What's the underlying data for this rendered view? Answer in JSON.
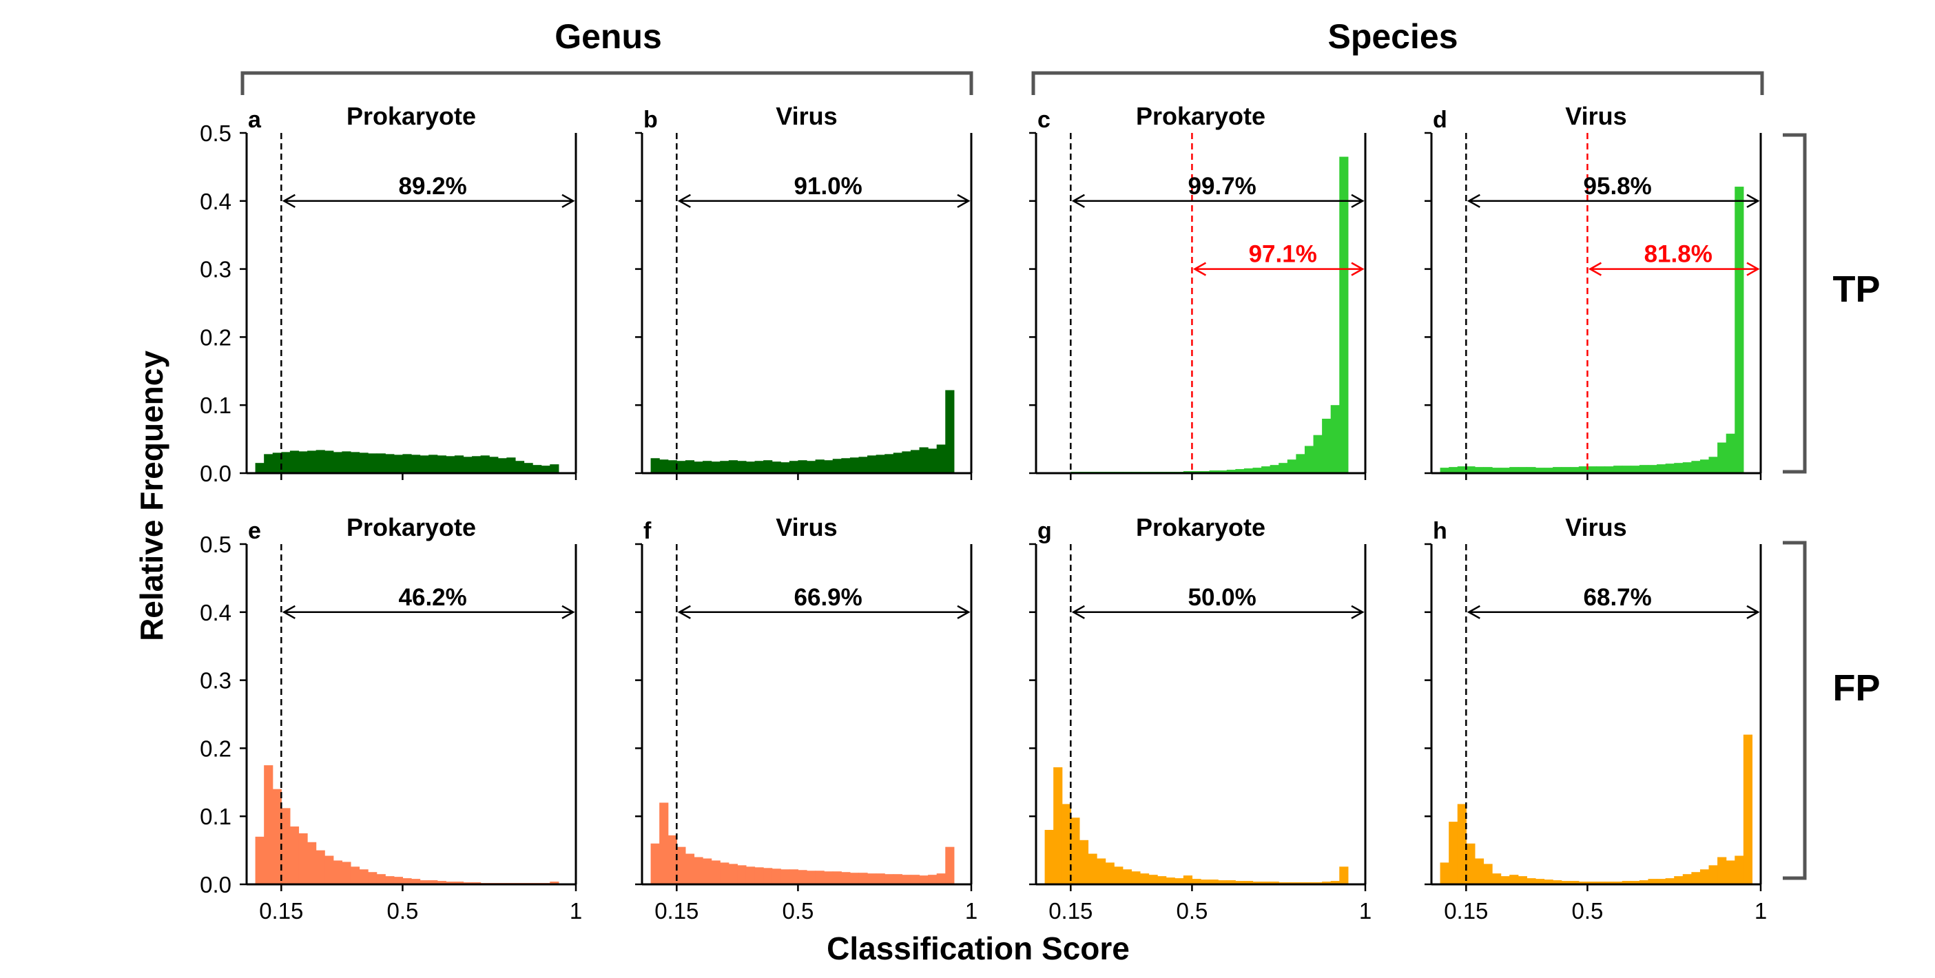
{
  "figure": {
    "y_label": "Relative Frequency",
    "x_label": "Classification Score",
    "column_groups": [
      "Genus",
      "Species"
    ],
    "row_labels": [
      "TP",
      "FP"
    ],
    "y_ticks": [
      "0.0",
      "0.1",
      "0.2",
      "0.3",
      "0.4",
      "0.5"
    ],
    "x_ticks": [
      "0.15",
      "0.5",
      "1"
    ]
  },
  "colors": {
    "genus_tp": "#006400",
    "species_tp": "#32cd32",
    "genus_fp": "#ff7f50",
    "species_fp": "#ffa500",
    "threshold_red": "#ff0000",
    "axis": "#000000"
  },
  "chart_data": [
    {
      "type": "bar",
      "panel": "a",
      "group": "Genus",
      "row": "TP",
      "title": "Prokaryote",
      "xlim": [
        0.05,
        1.0
      ],
      "ylim": [
        0,
        0.5
      ],
      "bin_start": 0.075,
      "bin_width": 0.025,
      "values": [
        0.015,
        0.028,
        0.03,
        0.031,
        0.033,
        0.032,
        0.033,
        0.034,
        0.033,
        0.031,
        0.032,
        0.031,
        0.03,
        0.029,
        0.029,
        0.028,
        0.027,
        0.028,
        0.027,
        0.026,
        0.027,
        0.026,
        0.025,
        0.026,
        0.024,
        0.025,
        0.026,
        0.024,
        0.022,
        0.023,
        0.018,
        0.015,
        0.012,
        0.011,
        0.013
      ],
      "annotations": [
        {
          "text": "89.2%",
          "from": 0.15,
          "to": 1.0,
          "y": 0.4,
          "color": "#000000"
        }
      ],
      "thresholds": [
        {
          "x": 0.15,
          "color": "#000000"
        }
      ]
    },
    {
      "type": "bar",
      "panel": "b",
      "group": "Genus",
      "row": "TP",
      "title": "Virus",
      "xlim": [
        0.05,
        1.0
      ],
      "ylim": [
        0,
        0.5
      ],
      "bin_start": 0.075,
      "bin_width": 0.025,
      "values": [
        0.022,
        0.02,
        0.019,
        0.018,
        0.019,
        0.017,
        0.018,
        0.017,
        0.018,
        0.019,
        0.018,
        0.017,
        0.018,
        0.019,
        0.017,
        0.016,
        0.018,
        0.019,
        0.018,
        0.02,
        0.019,
        0.021,
        0.022,
        0.023,
        0.024,
        0.026,
        0.027,
        0.028,
        0.03,
        0.032,
        0.034,
        0.038,
        0.036,
        0.042,
        0.122
      ],
      "annotations": [
        {
          "text": "91.0%",
          "from": 0.15,
          "to": 1.0,
          "y": 0.4,
          "color": "#000000"
        }
      ],
      "thresholds": [
        {
          "x": 0.15,
          "color": "#000000"
        }
      ]
    },
    {
      "type": "bar",
      "panel": "c",
      "group": "Species",
      "row": "TP",
      "title": "Prokaryote",
      "xlim": [
        0.05,
        1.0
      ],
      "ylim": [
        0,
        0.5
      ],
      "bin_start": 0.075,
      "bin_width": 0.025,
      "values": [
        0.001,
        0.001,
        0.001,
        0.002,
        0.002,
        0.002,
        0.002,
        0.002,
        0.002,
        0.002,
        0.002,
        0.002,
        0.002,
        0.002,
        0.002,
        0.002,
        0.003,
        0.003,
        0.003,
        0.004,
        0.004,
        0.005,
        0.006,
        0.007,
        0.008,
        0.01,
        0.012,
        0.015,
        0.02,
        0.028,
        0.04,
        0.056,
        0.08,
        0.1,
        0.465
      ],
      "annotations": [
        {
          "text": "99.7%",
          "from": 0.15,
          "to": 1.0,
          "y": 0.4,
          "color": "#000000"
        },
        {
          "text": "97.1%",
          "from": 0.5,
          "to": 1.0,
          "y": 0.3,
          "color": "#ff0000"
        }
      ],
      "thresholds": [
        {
          "x": 0.15,
          "color": "#000000"
        },
        {
          "x": 0.5,
          "color": "#ff0000"
        }
      ]
    },
    {
      "type": "bar",
      "panel": "d",
      "group": "Species",
      "row": "TP",
      "title": "Virus",
      "xlim": [
        0.05,
        1.0
      ],
      "ylim": [
        0,
        0.5
      ],
      "bin_start": 0.075,
      "bin_width": 0.025,
      "values": [
        0.008,
        0.009,
        0.01,
        0.01,
        0.009,
        0.009,
        0.008,
        0.008,
        0.009,
        0.009,
        0.009,
        0.008,
        0.008,
        0.009,
        0.009,
        0.009,
        0.01,
        0.01,
        0.01,
        0.01,
        0.011,
        0.011,
        0.011,
        0.012,
        0.012,
        0.013,
        0.014,
        0.015,
        0.016,
        0.018,
        0.02,
        0.024,
        0.045,
        0.058,
        0.421
      ],
      "annotations": [
        {
          "text": "95.8%",
          "from": 0.15,
          "to": 1.0,
          "y": 0.4,
          "color": "#000000"
        },
        {
          "text": "81.8%",
          "from": 0.5,
          "to": 1.0,
          "y": 0.3,
          "color": "#ff0000"
        }
      ],
      "thresholds": [
        {
          "x": 0.15,
          "color": "#000000"
        },
        {
          "x": 0.5,
          "color": "#ff0000"
        }
      ]
    },
    {
      "type": "bar",
      "panel": "e",
      "group": "Genus",
      "row": "FP",
      "title": "Prokaryote",
      "xlim": [
        0.05,
        1.0
      ],
      "ylim": [
        0,
        0.5
      ],
      "bin_start": 0.075,
      "bin_width": 0.025,
      "values": [
        0.07,
        0.175,
        0.14,
        0.112,
        0.085,
        0.075,
        0.062,
        0.05,
        0.042,
        0.035,
        0.033,
        0.026,
        0.022,
        0.018,
        0.015,
        0.012,
        0.011,
        0.009,
        0.008,
        0.006,
        0.006,
        0.005,
        0.004,
        0.004,
        0.003,
        0.003,
        0.002,
        0.002,
        0.002,
        0.002,
        0.002,
        0.002,
        0.002,
        0.002,
        0.004
      ],
      "annotations": [
        {
          "text": "46.2%",
          "from": 0.15,
          "to": 1.0,
          "y": 0.4,
          "color": "#000000"
        }
      ],
      "thresholds": [
        {
          "x": 0.15,
          "color": "#000000"
        }
      ]
    },
    {
      "type": "bar",
      "panel": "f",
      "group": "Genus",
      "row": "FP",
      "title": "Virus",
      "xlim": [
        0.05,
        1.0
      ],
      "ylim": [
        0,
        0.5
      ],
      "bin_start": 0.075,
      "bin_width": 0.025,
      "values": [
        0.06,
        0.12,
        0.072,
        0.055,
        0.045,
        0.04,
        0.038,
        0.035,
        0.032,
        0.03,
        0.028,
        0.026,
        0.025,
        0.024,
        0.023,
        0.022,
        0.022,
        0.021,
        0.02,
        0.02,
        0.019,
        0.019,
        0.018,
        0.017,
        0.017,
        0.016,
        0.016,
        0.015,
        0.015,
        0.014,
        0.014,
        0.013,
        0.014,
        0.016,
        0.055
      ],
      "annotations": [
        {
          "text": "66.9%",
          "from": 0.15,
          "to": 1.0,
          "y": 0.4,
          "color": "#000000"
        }
      ],
      "thresholds": [
        {
          "x": 0.15,
          "color": "#000000"
        }
      ]
    },
    {
      "type": "bar",
      "panel": "g",
      "group": "Species",
      "row": "FP",
      "title": "Prokaryote",
      "xlim": [
        0.05,
        1.0
      ],
      "ylim": [
        0,
        0.5
      ],
      "bin_start": 0.075,
      "bin_width": 0.025,
      "values": [
        0.08,
        0.172,
        0.118,
        0.098,
        0.065,
        0.045,
        0.038,
        0.032,
        0.026,
        0.022,
        0.019,
        0.016,
        0.014,
        0.012,
        0.01,
        0.009,
        0.013,
        0.008,
        0.007,
        0.007,
        0.006,
        0.006,
        0.005,
        0.005,
        0.004,
        0.004,
        0.004,
        0.003,
        0.003,
        0.003,
        0.003,
        0.003,
        0.004,
        0.005,
        0.026
      ],
      "annotations": [
        {
          "text": "50.0%",
          "from": 0.15,
          "to": 1.0,
          "y": 0.4,
          "color": "#000000"
        }
      ],
      "thresholds": [
        {
          "x": 0.15,
          "color": "#000000"
        }
      ]
    },
    {
      "type": "bar",
      "panel": "h",
      "group": "Species",
      "row": "FP",
      "title": "Virus",
      "xlim": [
        0.05,
        1.0
      ],
      "ylim": [
        0,
        0.5
      ],
      "bin_start": 0.075,
      "bin_width": 0.025,
      "values": [
        0.032,
        0.092,
        0.118,
        0.06,
        0.038,
        0.03,
        0.016,
        0.012,
        0.014,
        0.012,
        0.009,
        0.008,
        0.007,
        0.006,
        0.005,
        0.005,
        0.004,
        0.004,
        0.004,
        0.004,
        0.004,
        0.005,
        0.005,
        0.006,
        0.008,
        0.008,
        0.009,
        0.012,
        0.015,
        0.018,
        0.022,
        0.028,
        0.04,
        0.035,
        0.042,
        0.22
      ],
      "annotations": [
        {
          "text": "68.7%",
          "from": 0.15,
          "to": 1.0,
          "y": 0.4,
          "color": "#000000"
        }
      ],
      "thresholds": [
        {
          "x": 0.15,
          "color": "#000000"
        }
      ]
    }
  ]
}
